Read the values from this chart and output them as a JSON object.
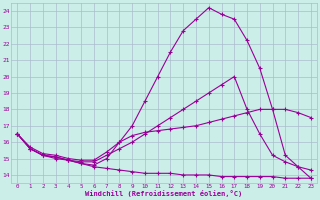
{
  "xlabel": "Windchill (Refroidissement éolien,°C)",
  "background_color": "#cceee8",
  "grid_color": "#aabbcc",
  "line_color": "#990099",
  "xlim": [
    -0.5,
    23.5
  ],
  "ylim": [
    13.5,
    24.5
  ],
  "x_ticks": [
    0,
    1,
    2,
    3,
    4,
    5,
    6,
    7,
    8,
    9,
    10,
    11,
    12,
    13,
    14,
    15,
    16,
    17,
    18,
    19,
    20,
    21,
    22,
    23
  ],
  "y_ticks": [
    14,
    15,
    16,
    17,
    18,
    19,
    20,
    21,
    22,
    23,
    24
  ],
  "lines": [
    {
      "x": [
        0,
        1,
        2,
        3,
        4,
        5,
        6,
        7,
        8,
        9,
        10,
        11,
        12,
        13,
        14,
        15,
        16,
        17,
        18,
        19,
        20,
        21,
        22,
        23
      ],
      "y": [
        16.5,
        15.7,
        15.3,
        15.2,
        15.0,
        14.9,
        14.9,
        15.4,
        16.0,
        16.4,
        16.6,
        16.7,
        16.8,
        16.9,
        17.0,
        17.2,
        17.4,
        17.6,
        17.8,
        18.0,
        18.0,
        18.0,
        17.8,
        17.5
      ]
    },
    {
      "x": [
        0,
        1,
        2,
        3,
        4,
        5,
        6,
        7,
        8,
        9,
        10,
        11,
        12,
        13,
        14,
        15,
        16,
        17,
        18,
        19,
        20,
        21,
        22,
        23
      ],
      "y": [
        16.5,
        15.6,
        15.2,
        15.1,
        14.9,
        14.8,
        14.8,
        15.2,
        15.6,
        16.0,
        16.5,
        17.0,
        17.5,
        18.0,
        18.5,
        19.0,
        19.5,
        20.0,
        18.0,
        16.5,
        15.2,
        14.8,
        14.5,
        14.3
      ]
    },
    {
      "x": [
        0,
        1,
        2,
        3,
        4,
        5,
        6,
        7,
        8,
        9,
        10,
        11,
        12,
        13,
        14,
        15,
        16,
        17,
        18,
        19,
        20,
        21,
        22,
        23
      ],
      "y": [
        16.5,
        15.6,
        15.2,
        15.1,
        14.9,
        14.7,
        14.6,
        15.0,
        16.0,
        17.0,
        18.5,
        20.0,
        21.5,
        22.8,
        23.5,
        24.2,
        23.8,
        23.5,
        22.2,
        20.5,
        18.0,
        15.2,
        14.5,
        13.8
      ]
    },
    {
      "x": [
        0,
        1,
        2,
        3,
        4,
        5,
        6,
        7,
        8,
        9,
        10,
        11,
        12,
        13,
        14,
        15,
        16,
        17,
        18,
        19,
        20,
        21,
        22,
        23
      ],
      "y": [
        16.5,
        15.6,
        15.2,
        15.0,
        14.9,
        14.7,
        14.5,
        14.4,
        14.3,
        14.2,
        14.1,
        14.1,
        14.1,
        14.0,
        14.0,
        14.0,
        13.9,
        13.9,
        13.9,
        13.9,
        13.9,
        13.8,
        13.8,
        13.8
      ]
    }
  ]
}
